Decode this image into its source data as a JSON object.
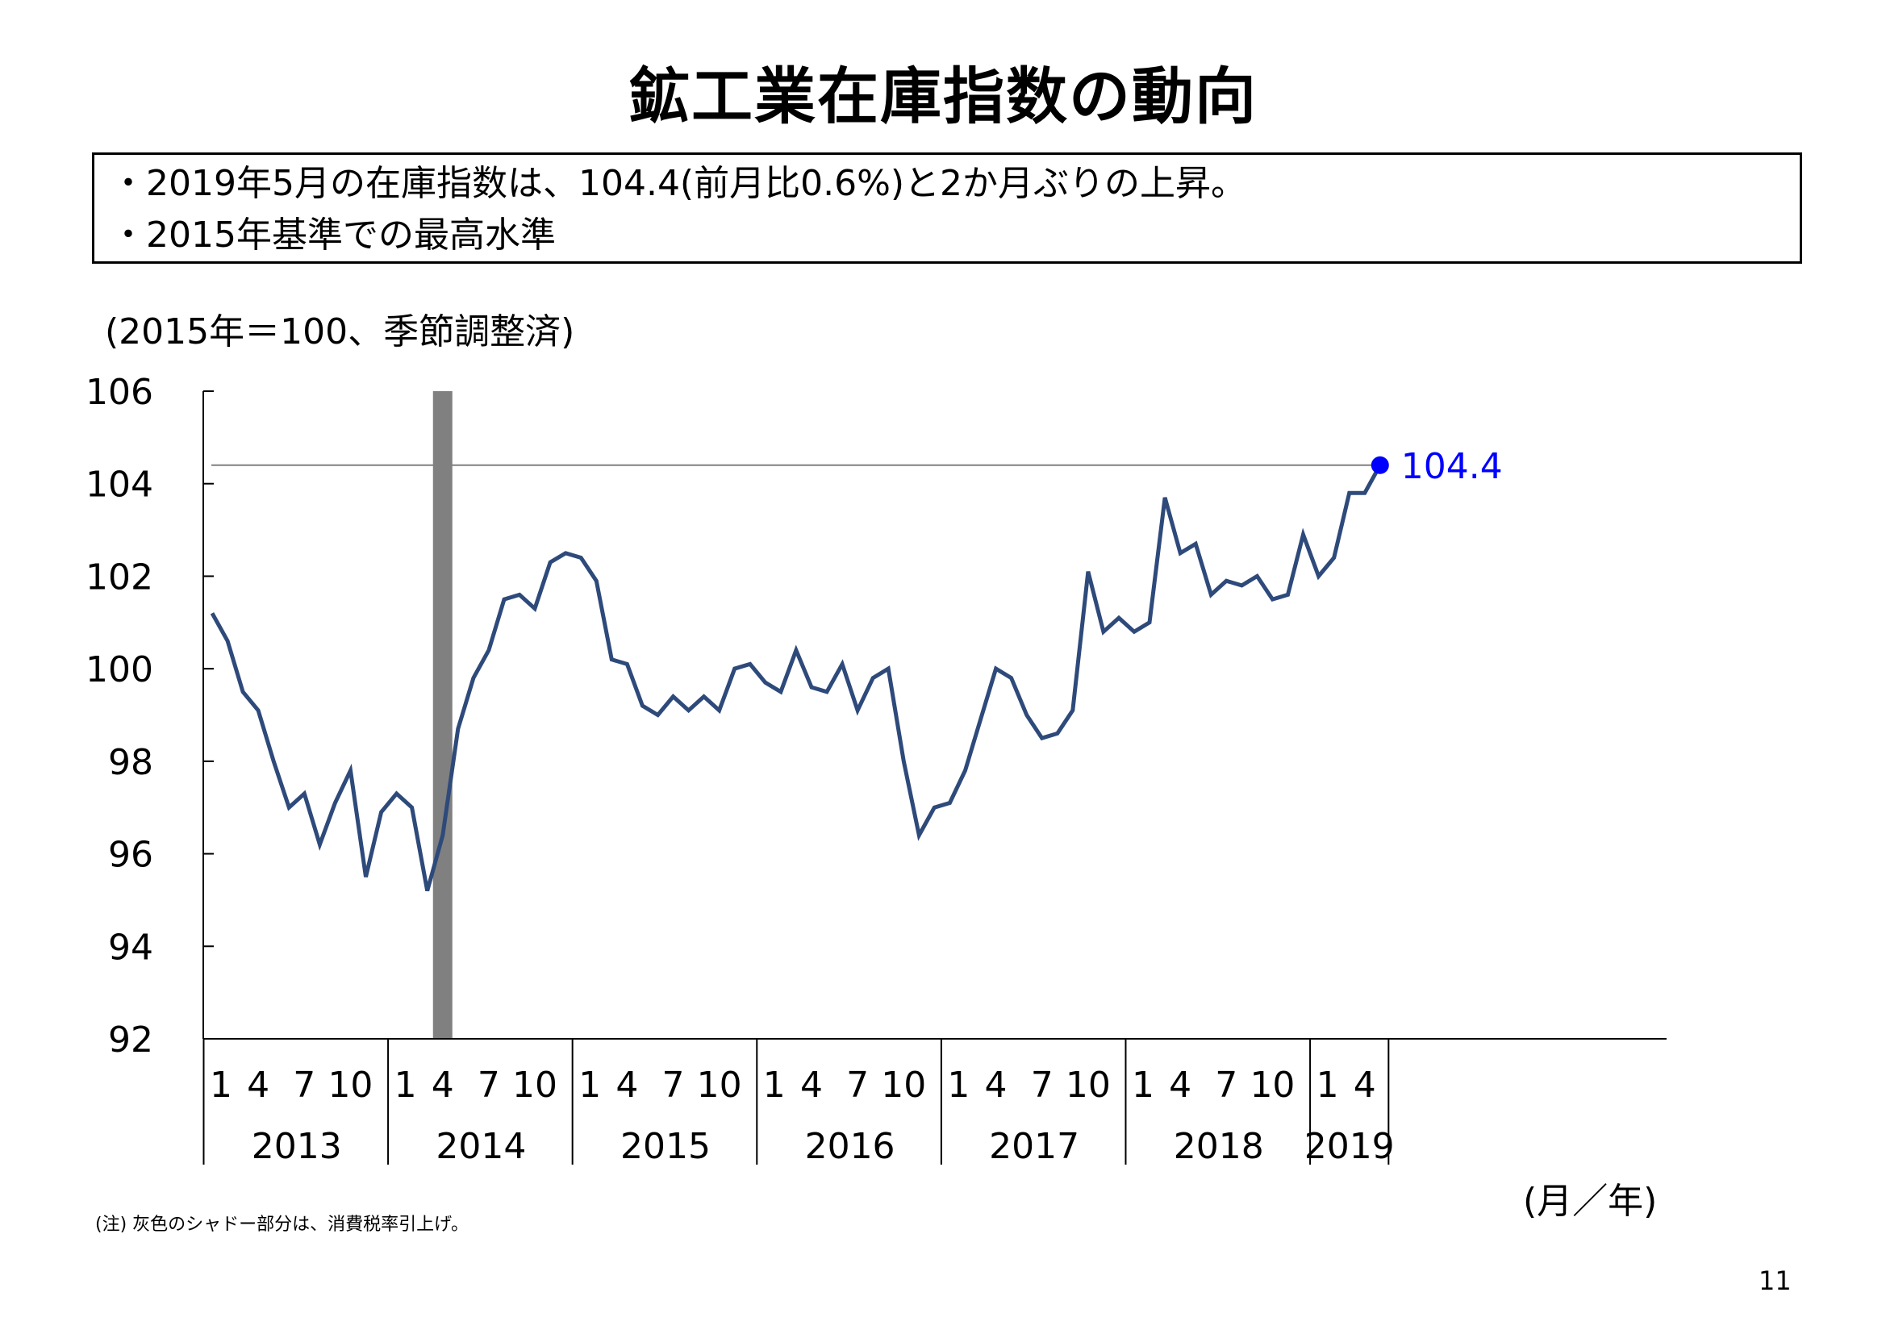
{
  "page": {
    "title": "鉱工業在庫指数の動向",
    "summary": [
      "・2019年5月の在庫指数は、104.4(前月比0.6%)と2か月ぶりの上昇。",
      "・2015年基準での最高水準"
    ],
    "unit_label": "(2015年＝100、季節調整済)",
    "axis_unit": "(月／年)",
    "note": "(注) 灰色のシャドー部分は、消費税率引上げ。",
    "page_number": "11"
  },
  "chart_data": {
    "type": "line",
    "y_ticks": [
      92,
      94,
      96,
      98,
      100,
      102,
      104,
      106
    ],
    "ylim": [
      92,
      106
    ],
    "month_ticks": [
      1,
      4,
      7,
      10
    ],
    "years": [
      "2013",
      "2014",
      "2015",
      "2016",
      "2017",
      "2018",
      "2019"
    ],
    "year_month_counts": [
      12,
      12,
      12,
      12,
      12,
      12,
      5
    ],
    "last_year_month_ticks": [
      1,
      4
    ],
    "series": [
      {
        "color": "#2e4a7a",
        "values": [
          101.2,
          100.6,
          99.5,
          99.1,
          98.0,
          97.0,
          97.3,
          96.2,
          97.1,
          97.8,
          95.5,
          96.9,
          97.3,
          97.0,
          95.2,
          96.4,
          98.7,
          99.8,
          100.4,
          101.5,
          101.6,
          101.3,
          102.3,
          102.5,
          102.4,
          101.9,
          100.2,
          100.1,
          99.2,
          99.0,
          99.4,
          99.1,
          99.4,
          99.1,
          100.0,
          100.1,
          99.7,
          99.5,
          100.4,
          99.6,
          99.5,
          100.1,
          99.1,
          99.8,
          100.0,
          98.0,
          96.4,
          97.0,
          97.1,
          97.8,
          98.9,
          100.0,
          99.8,
          99.0,
          98.5,
          98.6,
          99.1,
          102.1,
          100.8,
          101.1,
          100.8,
          101.0,
          103.7,
          102.5,
          102.7,
          101.6,
          101.9,
          101.8,
          102.0,
          101.5,
          101.6,
          102.9,
          102.0,
          102.4,
          103.8,
          103.8,
          104.4
        ]
      }
    ],
    "latest": {
      "label": "104.4",
      "value": 104.4,
      "color": "#0000ff"
    },
    "reference_line": {
      "value": 104.4,
      "color": "#808080"
    },
    "shade": {
      "year": "2014",
      "month": 4,
      "color": "#808080"
    }
  }
}
